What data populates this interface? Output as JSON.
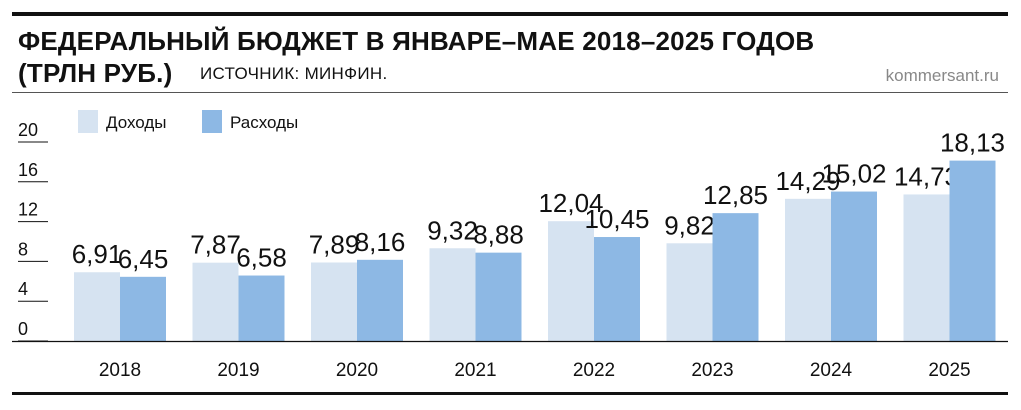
{
  "header": {
    "title_line1": "ФЕДЕРАЛЬНЫЙ БЮДЖЕТ В ЯНВАРЕ–МАЕ 2018–2025 ГОДОВ",
    "title_line2": "(ТРЛН РУБ.)",
    "source": "ИСТОЧНИК: МИНФИН.",
    "credit": "kommersant.ru"
  },
  "chart_data": {
    "type": "bar",
    "categories": [
      "2018",
      "2019",
      "2020",
      "2021",
      "2022",
      "2023",
      "2024",
      "2025"
    ],
    "series": [
      {
        "name": "Доходы",
        "color": "#d6e3f1",
        "values": [
          6.91,
          7.87,
          7.89,
          9.32,
          12.04,
          9.82,
          14.29,
          14.73
        ],
        "labels": [
          "6,91",
          "7,87",
          "7,89",
          "9,32",
          "12,04",
          "9,82",
          "14,29",
          "14,73"
        ]
      },
      {
        "name": "Расходы",
        "color": "#8db8e4",
        "values": [
          6.45,
          6.58,
          8.16,
          8.88,
          10.45,
          12.85,
          15.02,
          18.13
        ],
        "labels": [
          "6,45",
          "6,58",
          "8,16",
          "8,88",
          "10,45",
          "12,85",
          "15,02",
          "18,13"
        ]
      }
    ],
    "yticks": [
      "0",
      "4",
      "8",
      "12",
      "16",
      "20"
    ],
    "ytick_values": [
      0,
      4,
      8,
      12,
      16,
      20
    ],
    "ylim": [
      0,
      20
    ],
    "legend_position": "top-left",
    "grid": false
  }
}
